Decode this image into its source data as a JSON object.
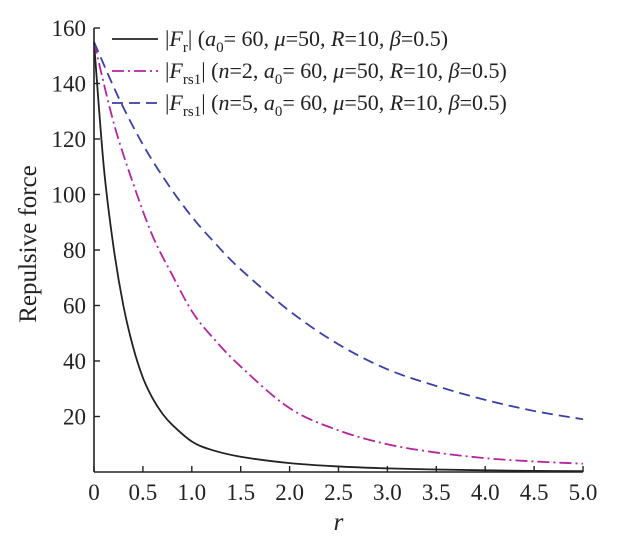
{
  "chart_data": {
    "type": "line",
    "title": "",
    "xlabel": "r",
    "ylabel": "Repulsive force",
    "xlim": [
      0,
      5.0
    ],
    "ylim": [
      0,
      160
    ],
    "x_ticks": [
      "0",
      "0.5",
      "1.0",
      "1.5",
      "2.0",
      "2.5",
      "3.0",
      "3.5",
      "4.0",
      "4.5",
      "5.0"
    ],
    "y_ticks": [
      "20",
      "40",
      "60",
      "80",
      "100",
      "120",
      "140",
      "160"
    ],
    "grid": false,
    "legend_position": "top-right",
    "series": [
      {
        "name": "|F_r| (a0 = 60, μ = 50, R = 10, β = 0.5)",
        "color": "#222222",
        "dash": "solid",
        "x": [
          0,
          0.1,
          0.2,
          0.3,
          0.4,
          0.5,
          0.6,
          0.7,
          0.8,
          1.0,
          1.2,
          1.5,
          2.0,
          2.5,
          3.0,
          3.5,
          4.0,
          4.5,
          5.0
        ],
        "y": [
          155,
          110,
          81,
          60,
          45,
          34,
          26.5,
          21,
          17,
          11,
          8,
          5.5,
          3.2,
          2.0,
          1.3,
          0.9,
          0.6,
          0.4,
          0.3
        ]
      },
      {
        "name": "|F_rs1| (n = 2, a0 = 60, μ = 50, R = 10, β = 0.5)",
        "color": "#b5239e",
        "dash": "dashdot",
        "x": [
          0,
          0.2,
          0.4,
          0.6,
          0.8,
          1.0,
          1.2,
          1.5,
          2.0,
          2.5,
          3.0,
          3.5,
          4.0,
          4.5,
          5.0
        ],
        "y": [
          155,
          126,
          104,
          85,
          71,
          58,
          49,
          38,
          23,
          15,
          10,
          7,
          5,
          3.8,
          3
        ]
      },
      {
        "name": "|F_rs1| (n = 5, a0 = 60, μ = 50, R = 10, β = 0.5)",
        "color": "#3a3fa8",
        "dash": "dashed",
        "x": [
          0,
          0.25,
          0.5,
          0.75,
          1.0,
          1.25,
          1.5,
          2.0,
          2.5,
          3.0,
          3.5,
          4.0,
          4.5,
          5.0
        ],
        "y": [
          155,
          135,
          118,
          104,
          92,
          82,
          73,
          58,
          46,
          37,
          31,
          26,
          22,
          19
        ]
      }
    ]
  },
  "legend": [
    {
      "prefix": "|F",
      "sub": "r",
      "mid": "| (",
      "params": [
        [
          "a",
          "0",
          "= 60, "
        ],
        [
          "μ",
          "",
          "=50, "
        ],
        [
          "R",
          "",
          "=10, "
        ],
        [
          "β",
          "",
          "=0.5)"
        ]
      ],
      "n": ""
    },
    {
      "prefix": "|F",
      "sub": "rs1",
      "mid": "| (",
      "n": "2",
      "params": [
        [
          "a",
          "0",
          "= 60, "
        ],
        [
          "μ",
          "",
          "=50, "
        ],
        [
          "R",
          "",
          "=10, "
        ],
        [
          "β",
          "",
          "=0.5)"
        ]
      ]
    },
    {
      "prefix": "|F",
      "sub": "rs1",
      "mid": "| (",
      "n": "5",
      "params": [
        [
          "a",
          "0",
          "= 60, "
        ],
        [
          "μ",
          "",
          "=50, "
        ],
        [
          "R",
          "",
          "=10, "
        ],
        [
          "β",
          "",
          "=0.5)"
        ]
      ]
    }
  ]
}
